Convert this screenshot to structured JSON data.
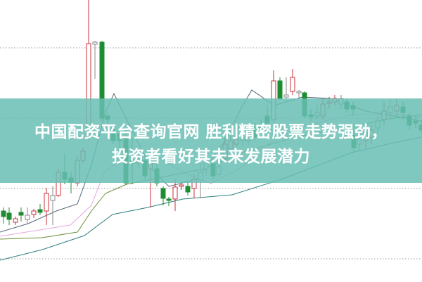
{
  "headline": {
    "line1": "中国配资平台查询官网 胜利精密股票走势强劲，",
    "line2": "投资者看好其未来发展潜力"
  },
  "colors": {
    "banner": "#68beb4",
    "candle_up": "#c8323c",
    "candle_down": "#1e8c32",
    "headline_text": "#ffffff"
  },
  "chart": {
    "type": "candlestick with moving averages",
    "grid": "dotted horizontal",
    "axes_labels_visible": false
  }
}
